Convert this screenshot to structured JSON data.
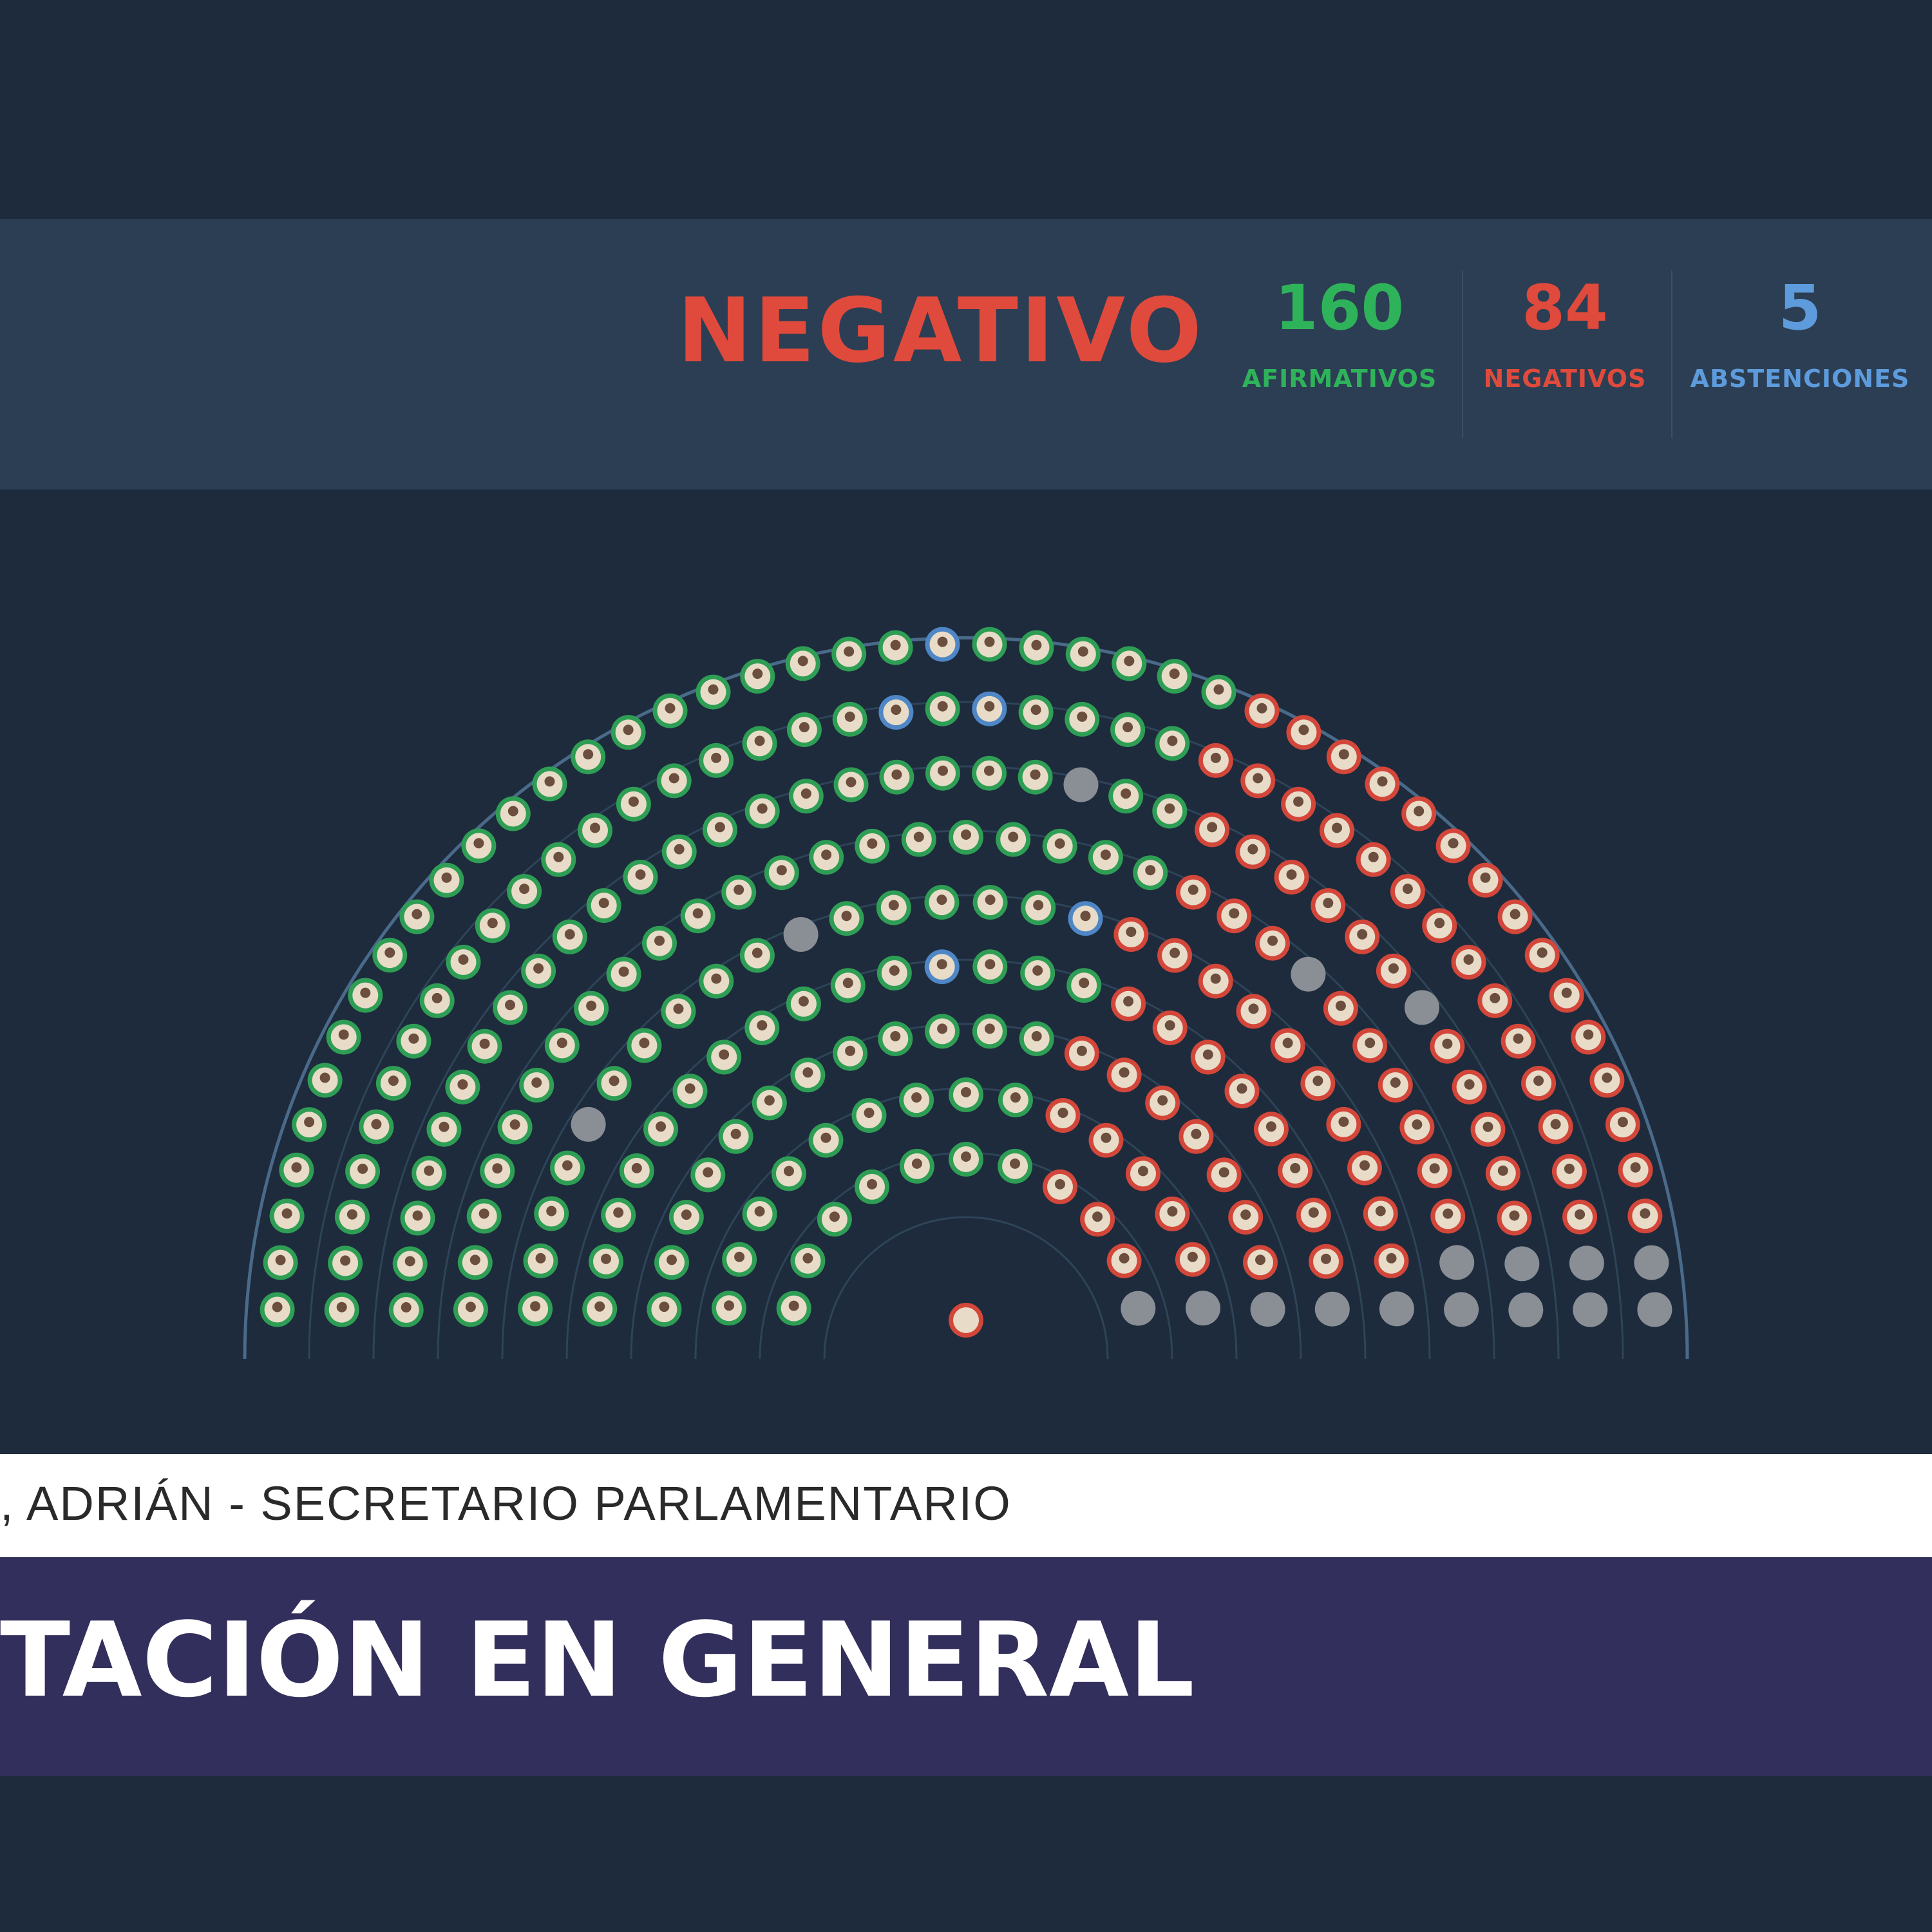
{
  "result": {
    "label": "NEGATIVO"
  },
  "counts": [
    {
      "value": "160",
      "label": "AFIRMATIVOS",
      "color": "#2fb35a"
    },
    {
      "value": "84",
      "label": "NEGATIVOS",
      "color": "#e04a3c"
    },
    {
      "value": "5",
      "label": "ABSTENCIONES",
      "color": "#5d9bdc"
    }
  ],
  "colors": {
    "afirmativo": "#2fb35a",
    "negativo": "#e04a3c",
    "abstencion": "#5d9bdc",
    "ausente": "#8a8f96"
  },
  "speaker": {
    "text": ", ADRIÁN - SECRETARIO PARLAMENTARIO"
  },
  "title": {
    "text": "TACIÓN EN GENERAL"
  }
}
